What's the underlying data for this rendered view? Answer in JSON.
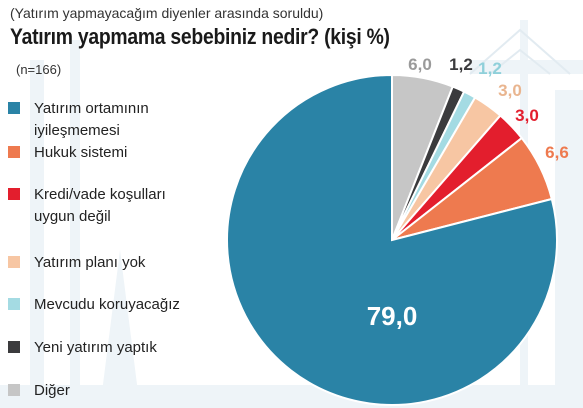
{
  "subtitle": "(Yatırım yapmayacağım diyenler arasında soruldu)",
  "title": "Yatırım yapmama sebebiniz nedir? (kişi %)",
  "sample": "(n=166)",
  "chart_data": {
    "type": "pie",
    "title": "Yatırım yapmama sebebiniz nedir? (kişi %)",
    "slices": [
      {
        "label": "Yatırım ortamının iyileşmemesi",
        "value": 79.0,
        "display": "79,0",
        "color": "#2a83a6"
      },
      {
        "label": "Hukuk sistemi",
        "value": 6.6,
        "display": "6,6",
        "color": "#ee7a4f"
      },
      {
        "label": "Kredi/vade koşulları uygun değil",
        "value": 3.0,
        "display": "3,0",
        "color": "#e31e2d"
      },
      {
        "label": "Yatırım planı yok",
        "value": 3.0,
        "display": "3,0",
        "color": "#f7c6a3"
      },
      {
        "label": "Mevcudu koruyacağız",
        "value": 1.2,
        "display": "1,2",
        "color": "#a4dbe3"
      },
      {
        "label": "Yeni yatırım yaptık",
        "value": 1.2,
        "display": "1,2",
        "color": "#3b3b3d"
      },
      {
        "label": "Diğer",
        "value": 6.0,
        "display": "6,0",
        "color": "#c6c6c6"
      }
    ],
    "legend_position": "left"
  }
}
